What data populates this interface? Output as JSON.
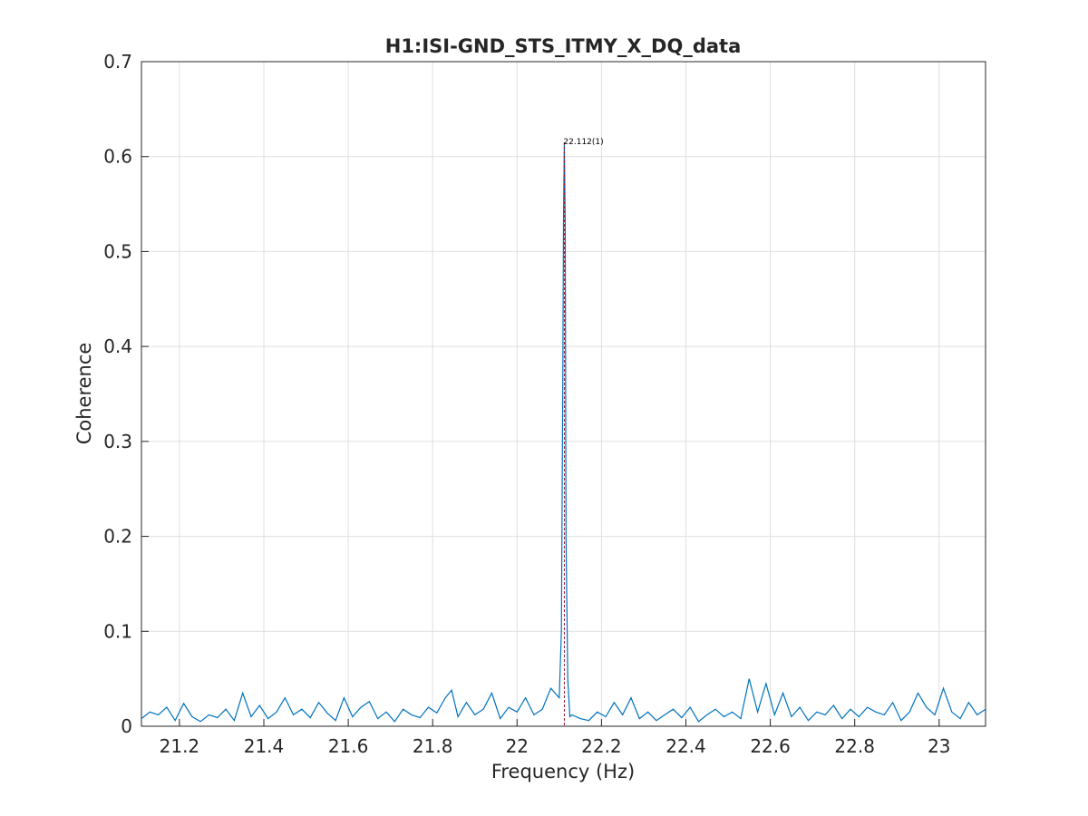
{
  "chart_data": {
    "type": "line",
    "title": "H1:ISI-GND_STS_ITMY_X_DQ_data",
    "xlabel": "Frequency (Hz)",
    "ylabel": "Coherence",
    "xlim": [
      21.11,
      23.11
    ],
    "ylim": [
      0,
      0.7
    ],
    "x_ticks": [
      21.2,
      21.4,
      21.6,
      21.8,
      22,
      22.2,
      22.4,
      22.6,
      22.8,
      23
    ],
    "x_tick_labels": [
      "21.2",
      "21.4",
      "21.6",
      "21.8",
      "22",
      "22.2",
      "22.4",
      "22.6",
      "22.8",
      "23"
    ],
    "y_ticks": [
      0,
      0.1,
      0.2,
      0.3,
      0.4,
      0.5,
      0.6,
      0.7
    ],
    "y_tick_labels": [
      "0",
      "0.1",
      "0.2",
      "0.3",
      "0.4",
      "0.5",
      "0.6",
      "0.7"
    ],
    "grid": true,
    "colors": {
      "series": "#0072BD",
      "marker_line": "#A2142F",
      "grid": "#dfdfdf",
      "axes": "#262626"
    },
    "series": [
      {
        "x": [
          21.11,
          21.13,
          21.15,
          21.17,
          21.19,
          21.21,
          21.23,
          21.25,
          21.27,
          21.29,
          21.31,
          21.33,
          21.35,
          21.37,
          21.39,
          21.41,
          21.43,
          21.45,
          21.47,
          21.49,
          21.51,
          21.53,
          21.55,
          21.57,
          21.59,
          21.61,
          21.63,
          21.65,
          21.67,
          21.69,
          21.71,
          21.73,
          21.75,
          21.77,
          21.79,
          21.81,
          21.83,
          21.845,
          21.86,
          21.88,
          21.9,
          21.92,
          21.94,
          21.96,
          21.98,
          22.0,
          22.02,
          22.04,
          22.06,
          22.08,
          22.1,
          22.105,
          22.108,
          22.11,
          22.112,
          22.114,
          22.116,
          22.12,
          22.125,
          22.13,
          22.15,
          22.17,
          22.19,
          22.21,
          22.23,
          22.25,
          22.27,
          22.29,
          22.31,
          22.33,
          22.35,
          22.37,
          22.39,
          22.41,
          22.43,
          22.45,
          22.47,
          22.49,
          22.51,
          22.53,
          22.55,
          22.57,
          22.59,
          22.61,
          22.63,
          22.65,
          22.67,
          22.69,
          22.71,
          22.73,
          22.75,
          22.77,
          22.79,
          22.81,
          22.83,
          22.85,
          22.87,
          22.89,
          22.91,
          22.93,
          22.95,
          22.97,
          22.99,
          23.01,
          23.03,
          23.05,
          23.07,
          23.09,
          23.11
        ],
        "y": [
          0.008,
          0.015,
          0.012,
          0.02,
          0.006,
          0.024,
          0.01,
          0.005,
          0.012,
          0.009,
          0.018,
          0.006,
          0.035,
          0.01,
          0.022,
          0.008,
          0.015,
          0.03,
          0.012,
          0.018,
          0.009,
          0.025,
          0.014,
          0.006,
          0.03,
          0.01,
          0.02,
          0.026,
          0.008,
          0.015,
          0.005,
          0.018,
          0.012,
          0.009,
          0.02,
          0.014,
          0.03,
          0.038,
          0.01,
          0.025,
          0.012,
          0.018,
          0.035,
          0.008,
          0.02,
          0.015,
          0.03,
          0.012,
          0.018,
          0.04,
          0.03,
          0.1,
          0.34,
          0.53,
          0.615,
          0.53,
          0.2,
          0.05,
          0.01,
          0.012,
          0.008,
          0.006,
          0.015,
          0.01,
          0.025,
          0.012,
          0.03,
          0.008,
          0.015,
          0.006,
          0.012,
          0.018,
          0.009,
          0.02,
          0.005,
          0.012,
          0.018,
          0.01,
          0.015,
          0.008,
          0.05,
          0.015,
          0.045,
          0.012,
          0.035,
          0.01,
          0.02,
          0.006,
          0.015,
          0.012,
          0.022,
          0.008,
          0.018,
          0.01,
          0.02,
          0.015,
          0.012,
          0.025,
          0.006,
          0.015,
          0.035,
          0.02,
          0.012,
          0.04,
          0.015,
          0.008,
          0.025,
          0.012,
          0.018
        ]
      }
    ],
    "annotations": [
      {
        "x": 22.112,
        "y": 0.615,
        "text": "22.112(1)"
      }
    ]
  }
}
